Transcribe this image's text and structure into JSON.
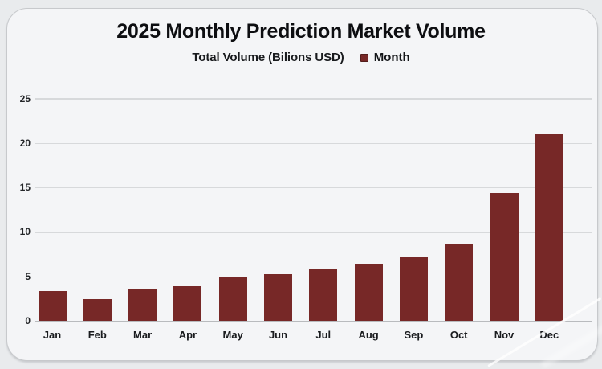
{
  "page": {
    "title": "2025 Monthly Prediction Market Volume",
    "subtitle": "Total Volume (Bilions USD)",
    "legend_label": "Month"
  },
  "colors": {
    "bar": "#772827",
    "card_background": "#f4f5f7",
    "page_background": "#e9ebed",
    "card_border": "#c7c9cc",
    "gridline": "#d7d9db",
    "axis_line": "#b9bbbe",
    "text": "#0d0e11"
  },
  "chart_data": {
    "type": "bar",
    "title": "2025 Monthly Prediction Market Volume",
    "subtitle": "Total Volume (Bilions USD)",
    "legend": [
      "Month"
    ],
    "legend_position": "top",
    "categories": [
      "Jan",
      "Feb",
      "Mar",
      "Apr",
      "May",
      "Jun",
      "Jul",
      "Aug",
      "Sep",
      "Oct",
      "Nov",
      "Dec"
    ],
    "values": [
      3.4,
      2.5,
      3.6,
      3.9,
      4.9,
      5.3,
      5.8,
      6.4,
      7.2,
      8.6,
      14.4,
      21.0
    ],
    "xlabel": "",
    "ylabel": "",
    "y_ticks": [
      0,
      5,
      10,
      15,
      20,
      25
    ],
    "ylim": [
      0,
      25
    ],
    "grid": true,
    "bar_color": "#772827"
  }
}
